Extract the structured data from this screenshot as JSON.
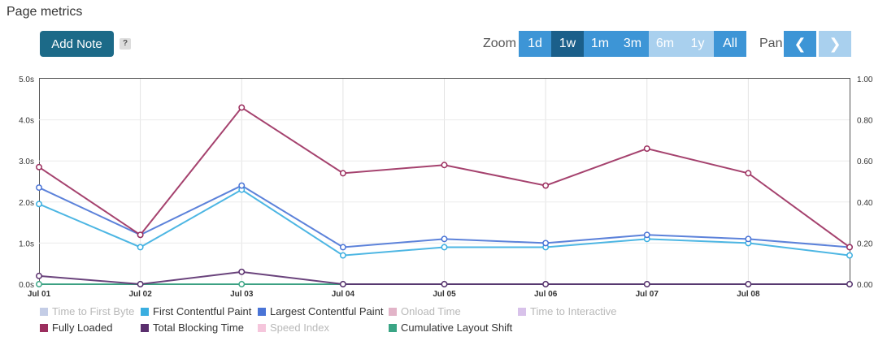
{
  "header": {
    "title": "Page metrics"
  },
  "toolbar": {
    "add_note_label": "Add Note",
    "help_label": "?",
    "zoom_label": "Zoom",
    "zoom_buttons": [
      {
        "label": "1d",
        "state": "normal"
      },
      {
        "label": "1w",
        "state": "active"
      },
      {
        "label": "1m",
        "state": "normal"
      },
      {
        "label": "3m",
        "state": "normal"
      },
      {
        "label": "6m",
        "state": "disabled"
      },
      {
        "label": "1y",
        "state": "disabled"
      },
      {
        "label": "All",
        "state": "normal"
      }
    ],
    "pan_label": "Pan",
    "pan_prev_icon": "chevron-left-icon",
    "pan_next_icon": "chevron-right-icon",
    "pan_prev_glyph": "❮",
    "pan_next_glyph": "❯"
  },
  "chart_data": {
    "type": "line",
    "categories": [
      "Jul 01",
      "Jul 02",
      "Jul 03",
      "Jul 04",
      "Jul 05",
      "Jul 06",
      "Jul 07",
      "Jul 08",
      ""
    ],
    "y_left": {
      "min": 0,
      "max": 5.0,
      "ticks": [
        "0.0s",
        "1.0s",
        "2.0s",
        "3.0s",
        "4.0s",
        "5.0s"
      ]
    },
    "y_right": {
      "min": 0,
      "max": 1.0,
      "ticks": [
        "0.00",
        "0.20",
        "0.40",
        "0.60",
        "0.80",
        "1.00"
      ]
    },
    "grid": true,
    "legend_position": "bottom-left",
    "series": [
      {
        "name": "Fully Loaded",
        "color": "#9b2e5e",
        "axis": "left",
        "values": [
          2.85,
          1.2,
          4.3,
          2.7,
          2.9,
          2.4,
          3.3,
          2.7,
          0.9
        ]
      },
      {
        "name": "Largest Contentful Paint",
        "color": "#4a74d6",
        "axis": "left",
        "values": [
          2.35,
          1.2,
          2.4,
          0.9,
          1.1,
          1.0,
          1.2,
          1.1,
          0.9
        ]
      },
      {
        "name": "First Contentful Paint",
        "color": "#3aaee0",
        "axis": "left",
        "values": [
          1.95,
          0.9,
          2.3,
          0.7,
          0.9,
          0.9,
          1.1,
          1.0,
          0.7
        ]
      },
      {
        "name": "Total Blocking Time",
        "color": "#5a2f6e",
        "axis": "left",
        "values": [
          0.2,
          0.0,
          0.3,
          0.0,
          0.0,
          0.0,
          0.0,
          0.0,
          0.0
        ]
      },
      {
        "name": "Cumulative Layout Shift",
        "color": "#3aa585",
        "axis": "right",
        "values": [
          0.0,
          0.0,
          0.0,
          0.0,
          0.0,
          0.0,
          0.0,
          0.0,
          0.0
        ]
      }
    ],
    "legend": [
      {
        "name": "Time to First Byte",
        "color": "#c4cde6",
        "visible": false
      },
      {
        "name": "First Contentful Paint",
        "color": "#3aaee0",
        "visible": true
      },
      {
        "name": "Largest Contentful Paint",
        "color": "#4a74d6",
        "visible": true
      },
      {
        "name": "Onload Time",
        "color": "#e2b4c8",
        "visible": false
      },
      {
        "name": "Time to Interactive",
        "color": "#d8c2ea",
        "visible": false
      },
      {
        "name": "Fully Loaded",
        "color": "#9b2e5e",
        "visible": true
      },
      {
        "name": "Total Blocking Time",
        "color": "#5a2f6e",
        "visible": true
      },
      {
        "name": "Speed Index",
        "color": "#f5c6dc",
        "visible": false
      },
      {
        "name": "Cumulative Layout Shift",
        "color": "#3aa585",
        "visible": true
      }
    ]
  }
}
